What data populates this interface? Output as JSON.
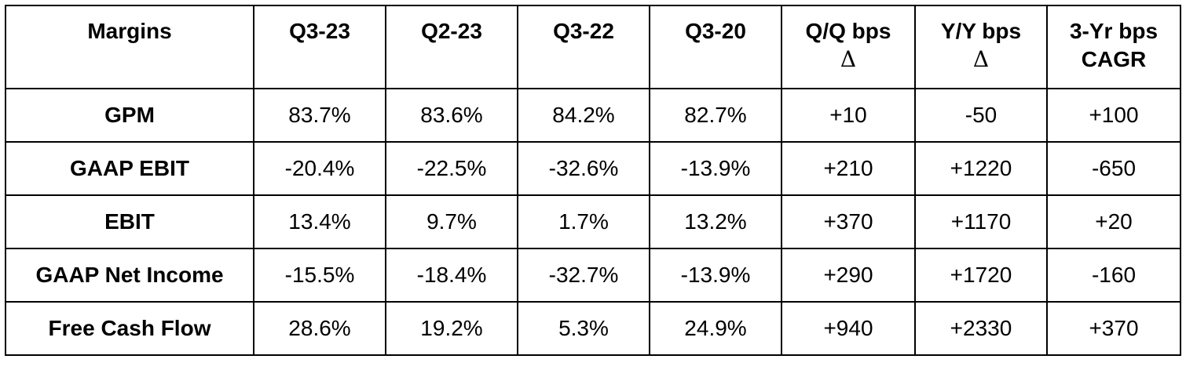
{
  "table": {
    "headers": [
      {
        "line1": "Margins",
        "line2": ""
      },
      {
        "line1": "Q3-23",
        "line2": ""
      },
      {
        "line1": "Q2-23",
        "line2": ""
      },
      {
        "line1": "Q3-22",
        "line2": ""
      },
      {
        "line1": "Q3-20",
        "line2": ""
      },
      {
        "line1": "Q/Q bps",
        "line2": "Δ"
      },
      {
        "line1": "Y/Y bps",
        "line2": "Δ"
      },
      {
        "line1": "3-Yr bps",
        "line2": "CAGR"
      }
    ],
    "rows": [
      {
        "label": "GPM",
        "cells": [
          "83.7%",
          "83.6%",
          "84.2%",
          "82.7%",
          "+10",
          "-50",
          "+100"
        ]
      },
      {
        "label": "GAAP EBIT",
        "cells": [
          "-20.4%",
          "-22.5%",
          "-32.6%",
          "-13.9%",
          "+210",
          "+1220",
          "-650"
        ]
      },
      {
        "label": "EBIT",
        "cells": [
          "13.4%",
          "9.7%",
          "1.7%",
          "13.2%",
          "+370",
          "+1170",
          "+20"
        ]
      },
      {
        "label": "GAAP Net Income",
        "cells": [
          "-15.5%",
          "-18.4%",
          "-32.7%",
          "-13.9%",
          "+290",
          "+1720",
          "-160"
        ]
      },
      {
        "label": "Free Cash Flow",
        "cells": [
          "28.6%",
          "19.2%",
          "5.3%",
          "24.9%",
          "+940",
          "+2330",
          "+370"
        ]
      }
    ]
  }
}
